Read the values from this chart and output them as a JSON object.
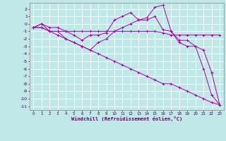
{
  "bg_color": "#c0e8e8",
  "grid_color": "#ffffff",
  "line_color": "#aa00aa",
  "xlabel": "Windchill (Refroidissement éolien,°C)",
  "xlim": [
    -0.5,
    23.5
  ],
  "ylim": [
    -11.5,
    2.8
  ],
  "yticks": [
    2,
    1,
    0,
    -1,
    -2,
    -3,
    -4,
    -5,
    -6,
    -7,
    -8,
    -9,
    -10,
    -11
  ],
  "xticks": [
    0,
    1,
    2,
    3,
    4,
    5,
    6,
    7,
    8,
    9,
    10,
    11,
    12,
    13,
    14,
    15,
    16,
    17,
    18,
    19,
    20,
    21,
    22,
    23
  ],
  "lines": [
    {
      "x": [
        0,
        1,
        2,
        3,
        4,
        5,
        6,
        7,
        8,
        9,
        10,
        11,
        12,
        13,
        14,
        15,
        16,
        17,
        18,
        19,
        20,
        21,
        22,
        23
      ],
      "y": [
        -0.5,
        0.0,
        -0.5,
        -0.5,
        -1.0,
        -1.5,
        -2.2,
        -1.5,
        -1.5,
        -1.2,
        0.5,
        1.0,
        1.5,
        0.5,
        0.8,
        2.2,
        2.5,
        -1.0,
        -2.2,
        -2.2,
        -3.0,
        -6.0,
        -9.5,
        -10.8
      ]
    },
    {
      "x": [
        0,
        1,
        2,
        3,
        4,
        5,
        6,
        7,
        8,
        9,
        10,
        11,
        12,
        13,
        14,
        15,
        16,
        17,
        18,
        19,
        20,
        21,
        22,
        23
      ],
      "y": [
        -0.5,
        0.0,
        -1.0,
        -1.0,
        -2.0,
        -2.5,
        -3.0,
        -3.5,
        -2.5,
        -2.0,
        -1.0,
        -0.5,
        0.0,
        0.5,
        0.5,
        1.0,
        -0.8,
        -1.0,
        -2.5,
        -3.0,
        -3.0,
        -3.5,
        -6.5,
        -10.8
      ]
    },
    {
      "x": [
        0,
        1,
        2,
        3,
        4,
        5,
        6,
        7,
        8,
        9,
        10,
        11,
        12,
        13,
        14,
        15,
        16,
        17,
        18,
        19,
        20,
        21,
        22,
        23
      ],
      "y": [
        -0.5,
        -0.5,
        -1.0,
        -1.0,
        -1.0,
        -1.0,
        -1.0,
        -1.0,
        -1.0,
        -1.0,
        -1.0,
        -1.0,
        -1.0,
        -1.0,
        -1.0,
        -1.0,
        -1.2,
        -1.5,
        -1.5,
        -1.5,
        -1.5,
        -1.5,
        -1.5,
        -1.5
      ]
    },
    {
      "x": [
        0,
        1,
        2,
        3,
        4,
        5,
        6,
        7,
        8,
        9,
        10,
        11,
        12,
        13,
        14,
        15,
        16,
        17,
        18,
        19,
        20,
        21,
        22,
        23
      ],
      "y": [
        -0.5,
        -0.5,
        -1.0,
        -1.5,
        -2.0,
        -2.5,
        -3.0,
        -3.5,
        -4.0,
        -4.5,
        -5.0,
        -5.5,
        -6.0,
        -6.5,
        -7.0,
        -7.5,
        -8.0,
        -8.0,
        -8.5,
        -9.0,
        -9.5,
        -10.0,
        -10.5,
        -10.8
      ]
    }
  ]
}
